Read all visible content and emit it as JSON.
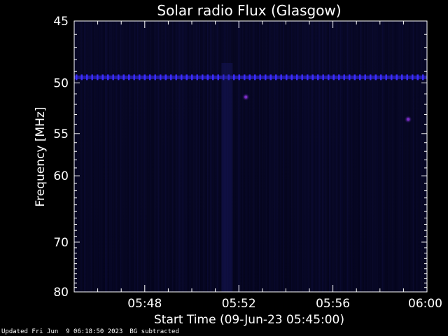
{
  "chart_data": {
    "type": "heatmap",
    "title": "Solar radio Flux (Glasgow)",
    "xlabel": "Start Time (09-Jun-23 05:45:00)",
    "ylabel": "Frequency [MHz]",
    "x_tick_labels": [
      "05:48",
      "05:52",
      "05:56",
      "06:00"
    ],
    "x_tick_minutes": [
      3,
      7,
      11,
      15
    ],
    "x_range_minutes": [
      0,
      15
    ],
    "y_tick_labels": [
      "45",
      "50",
      "55",
      "60",
      "70",
      "80"
    ],
    "y_tick_values": [
      45,
      50,
      55,
      60,
      70,
      80
    ],
    "y_range": [
      45,
      80
    ],
    "y_scale": "reciprocal",
    "colors": {
      "background": "#000000",
      "plot_low": "#05051c",
      "plot_mid": "#0a0a3a",
      "interference_line": "#3a2cff",
      "burst_spot": "#7a2cc8"
    },
    "features": [
      {
        "kind": "horizontal_band",
        "frequency_mhz": 49.5
      },
      {
        "kind": "spot",
        "time_minutes": 14.2,
        "frequency_mhz": 53.5
      },
      {
        "kind": "spot",
        "time_minutes": 7.3,
        "frequency_mhz": 51.3
      },
      {
        "kind": "faint_vertical_band",
        "time_minutes": 6.5
      }
    ]
  },
  "footer": {
    "updated": "Updated Fri Jun  9 06:18:50 2023",
    "bg": "BG subtracted"
  }
}
